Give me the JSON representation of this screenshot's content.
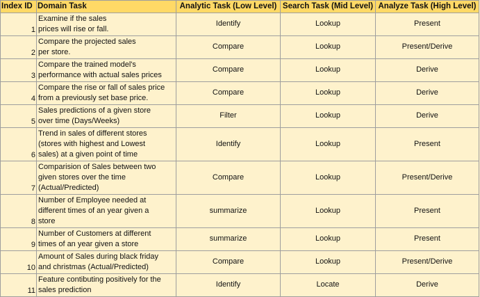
{
  "headers": {
    "index": "Index ID",
    "domain": "Domain Task",
    "analytic": "Analytic Task (Low Level)",
    "search": "Search Task (Mid Level)",
    "analyze": "Analyze Task (High Level)"
  },
  "rows": [
    {
      "id": "1",
      "domain": "Examine if the sales\nprices will rise or fall.",
      "analytic": "Identify",
      "search": "Lookup",
      "analyze": "Present"
    },
    {
      "id": "2",
      "domain": "Compare the projected sales\nper store.",
      "analytic": "Compare",
      "search": "Lookup",
      "analyze": "Present/Derive"
    },
    {
      "id": "3",
      "domain": "Compare the trained model's\nperformance with actual sales prices",
      "analytic": "Compare",
      "search": "Lookup",
      "analyze": "Derive"
    },
    {
      "id": "4",
      "domain": "Compare the rise or fall of sales price\nfrom a previously set base price.",
      "analytic": "Compare",
      "search": "Lookup",
      "analyze": "Derive"
    },
    {
      "id": "5",
      "domain": "Sales predictions of a given store\nover time (Days/Weeks)",
      "analytic": "Filter",
      "search": "Lookup",
      "analyze": "Derive"
    },
    {
      "id": "6",
      "domain": "Trend in sales of different stores\n(stores with highest and Lowest\nsales) at a given point of time",
      "analytic": "Identify",
      "search": "Lookup",
      "analyze": "Present"
    },
    {
      "id": "7",
      "domain": "Comparision of Sales between two\ngiven stores over the time\n(Actual/Predicted)",
      "analytic": "Compare",
      "search": "Lookup",
      "analyze": "Present/Derive"
    },
    {
      "id": "8",
      "domain": "Number of Employee needed at\ndifferent times of an year given a\nstore",
      "analytic": "summarize",
      "search": "Lookup",
      "analyze": "Present"
    },
    {
      "id": "9",
      "domain": "Number of Customers at different\ntimes of an year given a store",
      "analytic": "summarize",
      "search": "Lookup",
      "analyze": "Present"
    },
    {
      "id": "10",
      "domain": "Amount of Sales during black friday\nand christmas (Actual/Predicted)",
      "analytic": "Compare",
      "search": "Lookup",
      "analyze": "Present/Derive"
    },
    {
      "id": "11",
      "domain": "Feature contibuting positively for the\nsales prediction",
      "analytic": "Identify",
      "search": "Locate",
      "analyze": "Derive"
    }
  ]
}
